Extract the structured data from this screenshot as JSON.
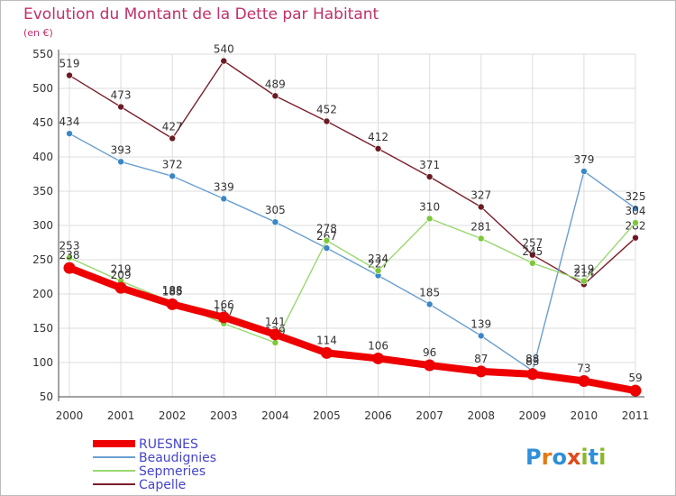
{
  "title": "Evolution du Montant de la Dette par Habitant",
  "unit": "(en €)",
  "logo": [
    "P",
    "r",
    "o",
    "x",
    "i",
    "t",
    "i"
  ],
  "logo_colors": [
    "#2f8fd8",
    "#e07b1a",
    "#2f8fd8",
    "#e04a1a",
    "#8ab82a",
    "#2f8fd8",
    "#8ab82a"
  ],
  "chart_data": {
    "type": "line",
    "title": "Evolution du Montant de la Dette par Habitant",
    "ylabel": "(en €)",
    "xlabel": "",
    "ylim": [
      50,
      550
    ],
    "yticks": [
      50,
      100,
      150,
      200,
      250,
      300,
      350,
      400,
      450,
      500,
      550
    ],
    "categories": [
      "2000",
      "2001",
      "2002",
      "2003",
      "2004",
      "2005",
      "2006",
      "2007",
      "2008",
      "2009",
      "2010",
      "2011"
    ],
    "grid": true,
    "legend_position": "bottom-left",
    "series": [
      {
        "name": "Capelle",
        "color": "#7a1f2b",
        "marker": "#6b1a23",
        "width": "thin",
        "values": [
          519,
          473,
          427,
          540,
          489,
          452,
          412,
          371,
          327,
          257,
          214,
          282
        ]
      },
      {
        "name": "Beaudignies",
        "color": "#6a9fd0",
        "marker": "#3a86c8",
        "width": "thin",
        "values": [
          434,
          393,
          372,
          339,
          305,
          267,
          227,
          185,
          139,
          88,
          379,
          325
        ]
      },
      {
        "name": "Sepmeries",
        "color": "#9ad870",
        "marker": "#7cc83a",
        "width": "thin",
        "values": [
          253,
          219,
          188,
          157,
          129,
          278,
          234,
          310,
          281,
          245,
          219,
          304
        ]
      },
      {
        "name": "RUESNES",
        "color": "#ee0000",
        "marker": "#ee0000",
        "width": "thick",
        "values": [
          238,
          209,
          185,
          166,
          141,
          114,
          106,
          96,
          87,
          83,
          73,
          59
        ]
      }
    ]
  }
}
